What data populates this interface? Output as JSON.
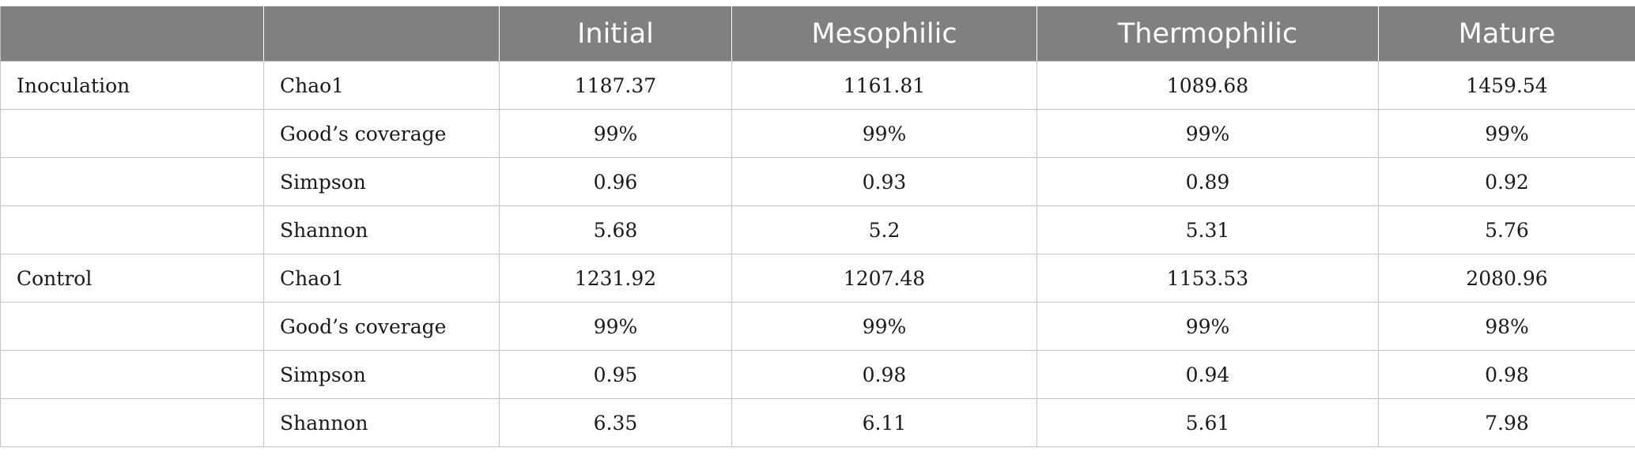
{
  "table": {
    "headers": [
      "",
      "",
      "Initial",
      "Mesophilic",
      "Thermophilic",
      "Mature"
    ],
    "rows": [
      {
        "group": "Inoculation",
        "metric": "Chao1",
        "values": [
          "1187.37",
          "1161.81",
          "1089.68",
          "1459.54"
        ]
      },
      {
        "group": "",
        "metric": "Good’s coverage",
        "values": [
          "99%",
          "99%",
          "99%",
          "99%"
        ]
      },
      {
        "group": "",
        "metric": "Simpson",
        "values": [
          "0.96",
          "0.93",
          "0.89",
          "0.92"
        ]
      },
      {
        "group": "",
        "metric": "Shannon",
        "values": [
          "5.68",
          "5.2",
          "5.31",
          "5.76"
        ]
      },
      {
        "group": "Control",
        "metric": "Chao1",
        "values": [
          "1231.92",
          "1207.48",
          "1153.53",
          "2080.96"
        ]
      },
      {
        "group": "",
        "metric": "Good’s coverage",
        "values": [
          "99%",
          "99%",
          "99%",
          "98%"
        ]
      },
      {
        "group": "",
        "metric": "Simpson",
        "values": [
          "0.95",
          "0.98",
          "0.94",
          "0.98"
        ]
      },
      {
        "group": "",
        "metric": "Shannon",
        "values": [
          "6.35",
          "6.11",
          "5.61",
          "7.98"
        ]
      }
    ]
  }
}
